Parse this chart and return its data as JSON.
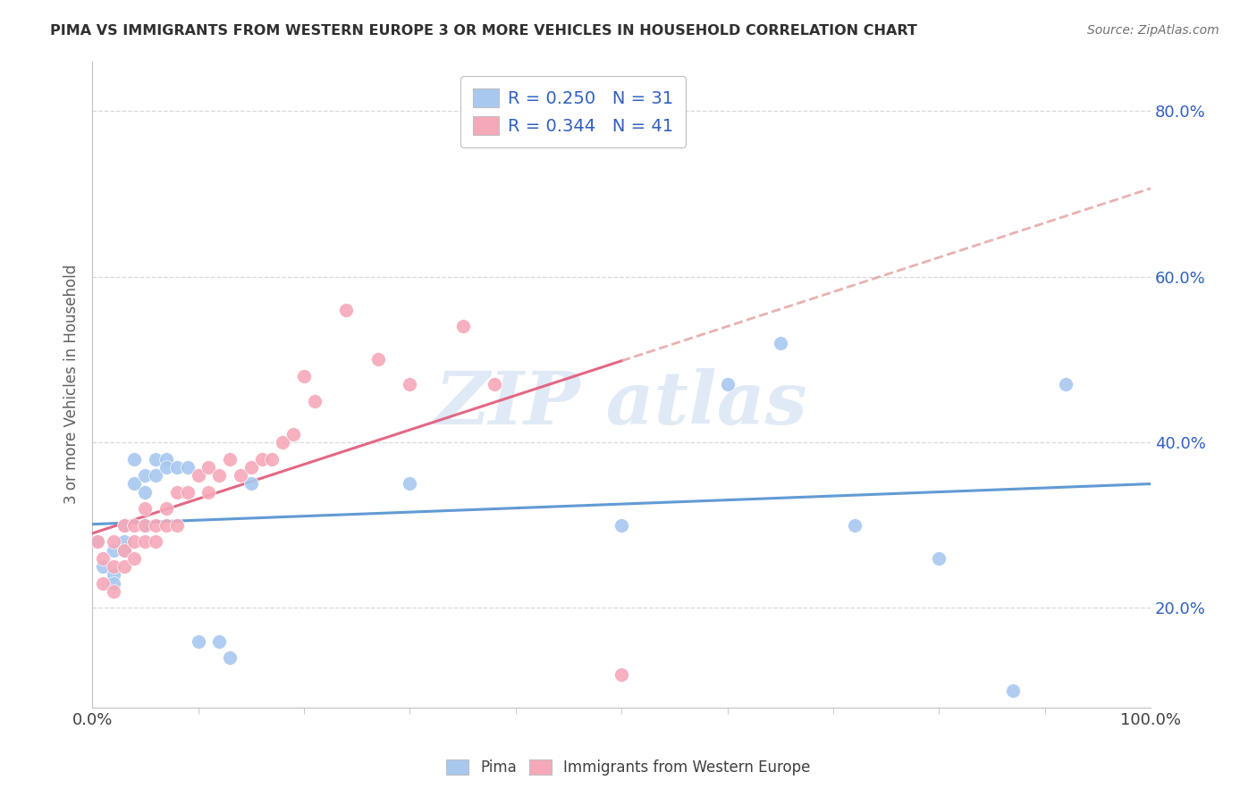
{
  "title": "PIMA VS IMMIGRANTS FROM WESTERN EUROPE 3 OR MORE VEHICLES IN HOUSEHOLD CORRELATION CHART",
  "source_text": "Source: ZipAtlas.com",
  "ylabel": "3 or more Vehicles in Household",
  "xlim": [
    0.0,
    1.0
  ],
  "ylim": [
    0.08,
    0.86
  ],
  "pima_R": "0.250",
  "pima_N": "31",
  "west_europe_R": "0.344",
  "west_europe_N": "41",
  "pima_color": "#a8c8f0",
  "west_europe_color": "#f5a8b8",
  "pima_trend_color": "#5090d0",
  "we_trend_color": "#e05878",
  "we_trend_dashed_color": "#e09090",
  "background_color": "#ffffff",
  "grid_color": "#d8d8d8",
  "annotation_color": "#3060c0",
  "title_color": "#303030",
  "axis_label_color": "#606060",
  "ytick_positions": [
    0.2,
    0.4,
    0.6,
    0.8
  ],
  "ytick_labels": [
    "20.0%",
    "40.0%",
    "60.0%",
    "80.0%"
  ],
  "pima_scatter_x": [
    0.005,
    0.01,
    0.02,
    0.02,
    0.02,
    0.03,
    0.03,
    0.03,
    0.04,
    0.04,
    0.05,
    0.05,
    0.05,
    0.06,
    0.06,
    0.07,
    0.07,
    0.08,
    0.09,
    0.1,
    0.12,
    0.13,
    0.15,
    0.3,
    0.5,
    0.6,
    0.65,
    0.72,
    0.8,
    0.87,
    0.92
  ],
  "pima_scatter_y": [
    0.28,
    0.25,
    0.27,
    0.24,
    0.23,
    0.3,
    0.27,
    0.28,
    0.35,
    0.38,
    0.36,
    0.34,
    0.3,
    0.36,
    0.38,
    0.38,
    0.37,
    0.37,
    0.37,
    0.16,
    0.16,
    0.14,
    0.35,
    0.35,
    0.3,
    0.47,
    0.52,
    0.3,
    0.26,
    0.1,
    0.47
  ],
  "we_scatter_x": [
    0.005,
    0.01,
    0.01,
    0.02,
    0.02,
    0.02,
    0.03,
    0.03,
    0.03,
    0.04,
    0.04,
    0.04,
    0.05,
    0.05,
    0.05,
    0.06,
    0.06,
    0.07,
    0.07,
    0.08,
    0.08,
    0.09,
    0.1,
    0.11,
    0.11,
    0.12,
    0.13,
    0.14,
    0.15,
    0.16,
    0.17,
    0.18,
    0.19,
    0.2,
    0.21,
    0.24,
    0.27,
    0.3,
    0.35,
    0.38,
    0.5
  ],
  "we_scatter_y": [
    0.28,
    0.26,
    0.23,
    0.22,
    0.25,
    0.28,
    0.27,
    0.3,
    0.25,
    0.26,
    0.28,
    0.3,
    0.3,
    0.28,
    0.32,
    0.28,
    0.3,
    0.3,
    0.32,
    0.34,
    0.3,
    0.34,
    0.36,
    0.37,
    0.34,
    0.36,
    0.38,
    0.36,
    0.37,
    0.38,
    0.38,
    0.4,
    0.41,
    0.48,
    0.45,
    0.56,
    0.5,
    0.47,
    0.54,
    0.47,
    0.12
  ],
  "watermark_text": "ZIP atlas"
}
